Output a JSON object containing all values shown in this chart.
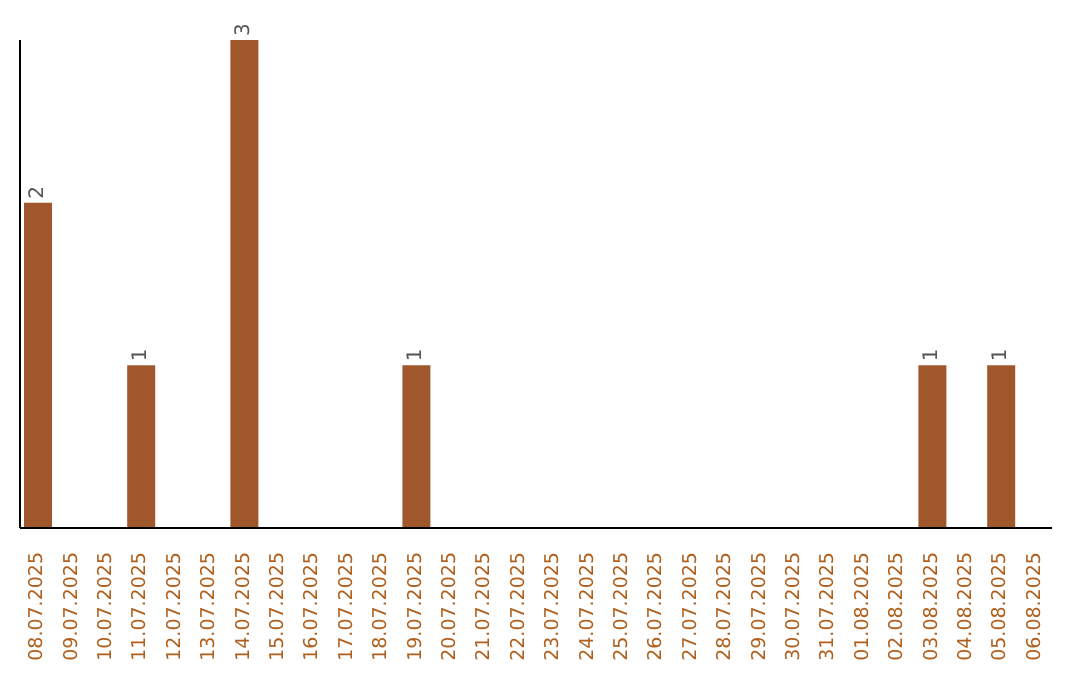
{
  "chart_data": {
    "type": "bar",
    "categories": [
      "08.07.2025",
      "09.07.2025",
      "10.07.2025",
      "11.07.2025",
      "12.07.2025",
      "13.07.2025",
      "14.07.2025",
      "15.07.2025",
      "16.07.2025",
      "17.07.2025",
      "18.07.2025",
      "19.07.2025",
      "20.07.2025",
      "21.07.2025",
      "22.07.2025",
      "23.07.2025",
      "24.07.2025",
      "25.07.2025",
      "26.07.2025",
      "27.07.2025",
      "28.07.2025",
      "29.07.2025",
      "30.07.2025",
      "31.07.2025",
      "01.08.2025",
      "02.08.2025",
      "03.08.2025",
      "04.08.2025",
      "05.08.2025",
      "06.08.2025"
    ],
    "values": [
      2,
      0,
      0,
      1,
      0,
      0,
      3,
      0,
      0,
      0,
      0,
      1,
      0,
      0,
      0,
      0,
      0,
      0,
      0,
      0,
      0,
      0,
      0,
      0,
      0,
      0,
      1,
      0,
      1,
      0
    ],
    "value_labels": [
      "2",
      null,
      null,
      "1",
      null,
      null,
      "3",
      null,
      null,
      null,
      null,
      "1",
      null,
      null,
      null,
      null,
      null,
      null,
      null,
      null,
      null,
      null,
      null,
      null,
      null,
      null,
      "1",
      null,
      "1",
      null
    ],
    "color": "#a0572b",
    "grid": false,
    "legend": false
  }
}
